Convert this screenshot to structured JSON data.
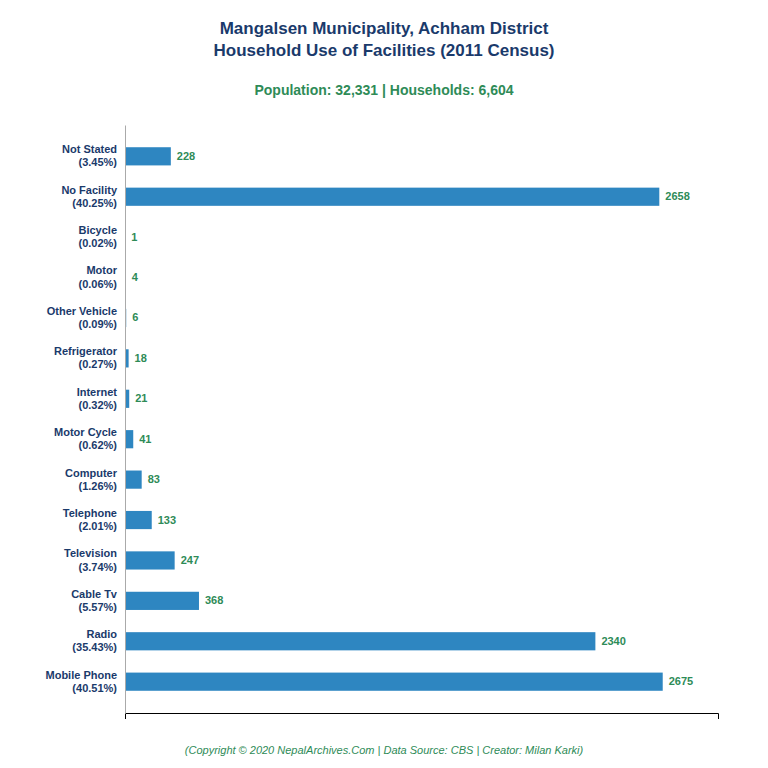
{
  "chart_data": {
    "type": "bar",
    "orientation": "horizontal",
    "title": "Mangalsen Municipality, Achham District\nHousehold Use of Facilities (2011 Census)",
    "subtitle": "Population: 32,331 | Households: 6,604",
    "annotations": [
      "(Copyright © 2020 NepalArchives.Com | Data Source: CBS | Creator: Milan Karki)"
    ],
    "categories": [
      "Not Stated\n(3.45%)",
      "No Facility\n(40.25%)",
      "Bicycle\n(0.02%)",
      "Motor\n(0.06%)",
      "Other Vehicle\n(0.09%)",
      "Refrigerator\n(0.27%)",
      "Internet\n(0.32%)",
      "Motor Cycle\n(0.62%)",
      "Computer\n(1.26%)",
      "Telephone\n(2.01%)",
      "Television\n(3.74%)",
      "Cable Tv\n(5.57%)",
      "Radio\n(35.43%)",
      "Mobile Phone\n(40.51%)"
    ],
    "values": [
      228,
      2658,
      1,
      4,
      6,
      18,
      21,
      41,
      83,
      133,
      247,
      368,
      2340,
      2675
    ],
    "color": "#2e86c1",
    "xlim": [
      0,
      2950
    ],
    "grid": false,
    "data_labels": true,
    "tick_labels": "y"
  }
}
